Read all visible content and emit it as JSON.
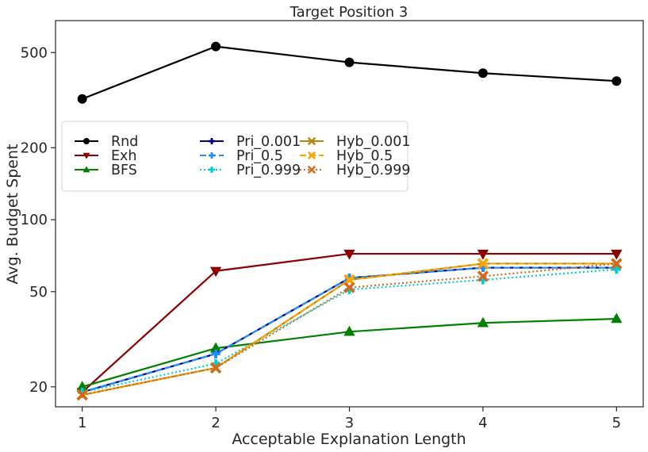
{
  "chart_data": {
    "type": "line",
    "title": "Target Position 3",
    "xlabel": "Acceptable Explanation Length",
    "ylabel": "Avg. Budget Spent",
    "x": [
      1,
      2,
      3,
      4,
      5
    ],
    "yscale": "log",
    "ylim": [
      16.5,
      680
    ],
    "xlim": [
      0.8,
      5.2
    ],
    "yticks": [
      20,
      50,
      100,
      200,
      500
    ],
    "xticks": [
      1,
      2,
      3,
      4,
      5
    ],
    "grid": false,
    "legend_position": "upper-left",
    "series": [
      {
        "name": "Rnd",
        "color": "#000000",
        "dash": "solid",
        "marker": "circle",
        "values": [
          320,
          530,
          455,
          410,
          380
        ]
      },
      {
        "name": "Exh",
        "color": "#8b0000",
        "dash": "solid",
        "marker": "triangle-down",
        "values": [
          19,
          61,
          72,
          72,
          72
        ]
      },
      {
        "name": "BFS",
        "color": "#008000",
        "dash": "solid",
        "marker": "triangle-up",
        "values": [
          20,
          29,
          34,
          37,
          38.5
        ]
      },
      {
        "name": "Pri_0.001",
        "color": "#000080",
        "dash": "solid",
        "marker": "plus",
        "values": [
          19,
          27.5,
          57,
          63,
          63
        ]
      },
      {
        "name": "Pri_0.5",
        "color": "#1e90ff",
        "dash": "dashed",
        "marker": "plus",
        "values": [
          19,
          27.5,
          57,
          63,
          63
        ]
      },
      {
        "name": "Pri_0.999",
        "color": "#00ced1",
        "dash": "dotted",
        "marker": "plus",
        "values": [
          19,
          25,
          51,
          56,
          62
        ]
      },
      {
        "name": "Hyb_0.001",
        "color": "#b8860b",
        "dash": "solid",
        "marker": "x",
        "values": [
          18.5,
          24,
          56,
          65.5,
          65.5
        ]
      },
      {
        "name": "Hyb_0.5",
        "color": "#ffa500",
        "dash": "dashed",
        "marker": "x",
        "values": [
          18.5,
          24,
          56,
          65.5,
          65.5
        ]
      },
      {
        "name": "Hyb_0.999",
        "color": "#d2691e",
        "dash": "dotted",
        "marker": "x",
        "values": [
          18.5,
          24,
          52,
          58,
          65.5
        ]
      }
    ]
  }
}
